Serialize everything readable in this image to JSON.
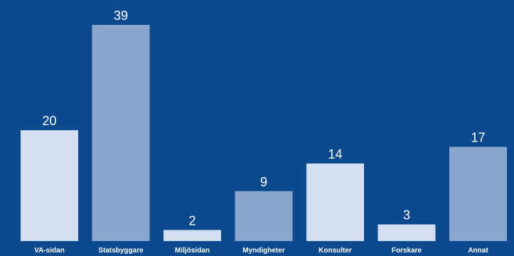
{
  "chart_data": {
    "type": "bar",
    "categories": [
      "VA-sidan",
      "Statsbyggare",
      "Miljösidan",
      "Myndigheter",
      "Konsulter",
      "Forskare",
      "Annat"
    ],
    "values": [
      20,
      39,
      2,
      9,
      14,
      3,
      17
    ],
    "data_labels": [
      "20",
      "39",
      "2",
      "9",
      "14",
      "3",
      "17"
    ],
    "bar_colors": [
      "#d3dff0",
      "#8ca7ce",
      "#d3dff0",
      "#8ca7ce",
      "#d3dff0",
      "#d3dff0",
      "#8ca7ce"
    ],
    "background": "#0b4a8f",
    "ylim": [
      0,
      39
    ],
    "grid": false,
    "legend": "none"
  }
}
